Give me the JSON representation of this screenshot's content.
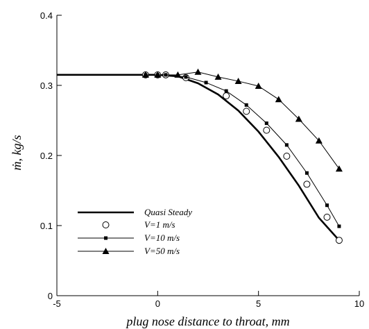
{
  "chart_data": {
    "type": "line",
    "xlabel": "plug nose distance to throat, mm",
    "ylabel": "ṁ, kg/s",
    "xlim": [
      -5,
      10
    ],
    "ylim": [
      0,
      0.4
    ],
    "x_ticks": [
      "-5",
      "0",
      "5",
      "10"
    ],
    "y_ticks": [
      "0",
      "0.1",
      "0.2",
      "0.3",
      "0.4"
    ],
    "grid": false,
    "legend_position": "lower-left",
    "series": [
      {
        "name": "Quasi Steady",
        "style": "thick-line",
        "x": [
          -5,
          -1,
          0,
          1,
          2,
          3,
          4,
          5,
          6,
          7,
          8,
          9
        ],
        "y": [
          0.315,
          0.315,
          0.315,
          0.313,
          0.303,
          0.287,
          0.264,
          0.234,
          0.198,
          0.157,
          0.111,
          0.079
        ]
      },
      {
        "name": "V=1   m/s",
        "style": "open-circle",
        "x": [
          -0.6,
          0,
          0.4,
          1.4,
          3.4,
          4.4,
          5.4,
          6.4,
          7.4,
          8.4,
          9
        ],
        "y": [
          0.315,
          0.315,
          0.315,
          0.311,
          0.285,
          0.263,
          0.236,
          0.199,
          0.159,
          0.112,
          0.079
        ]
      },
      {
        "name": "V=10 m/s",
        "style": "square",
        "x": [
          -0.6,
          0,
          0.4,
          1.4,
          2.4,
          3.4,
          4.4,
          5.4,
          6.4,
          7.4,
          8.4,
          9
        ],
        "y": [
          0.315,
          0.315,
          0.315,
          0.312,
          0.304,
          0.292,
          0.272,
          0.246,
          0.215,
          0.175,
          0.129,
          0.099
        ]
      },
      {
        "name": "V=50 m/s",
        "style": "triangle",
        "x": [
          -0.6,
          0,
          1,
          2,
          3,
          4,
          5,
          6,
          7,
          8,
          9
        ],
        "y": [
          0.315,
          0.315,
          0.315,
          0.319,
          0.312,
          0.306,
          0.299,
          0.28,
          0.252,
          0.221,
          0.181
        ]
      }
    ]
  }
}
